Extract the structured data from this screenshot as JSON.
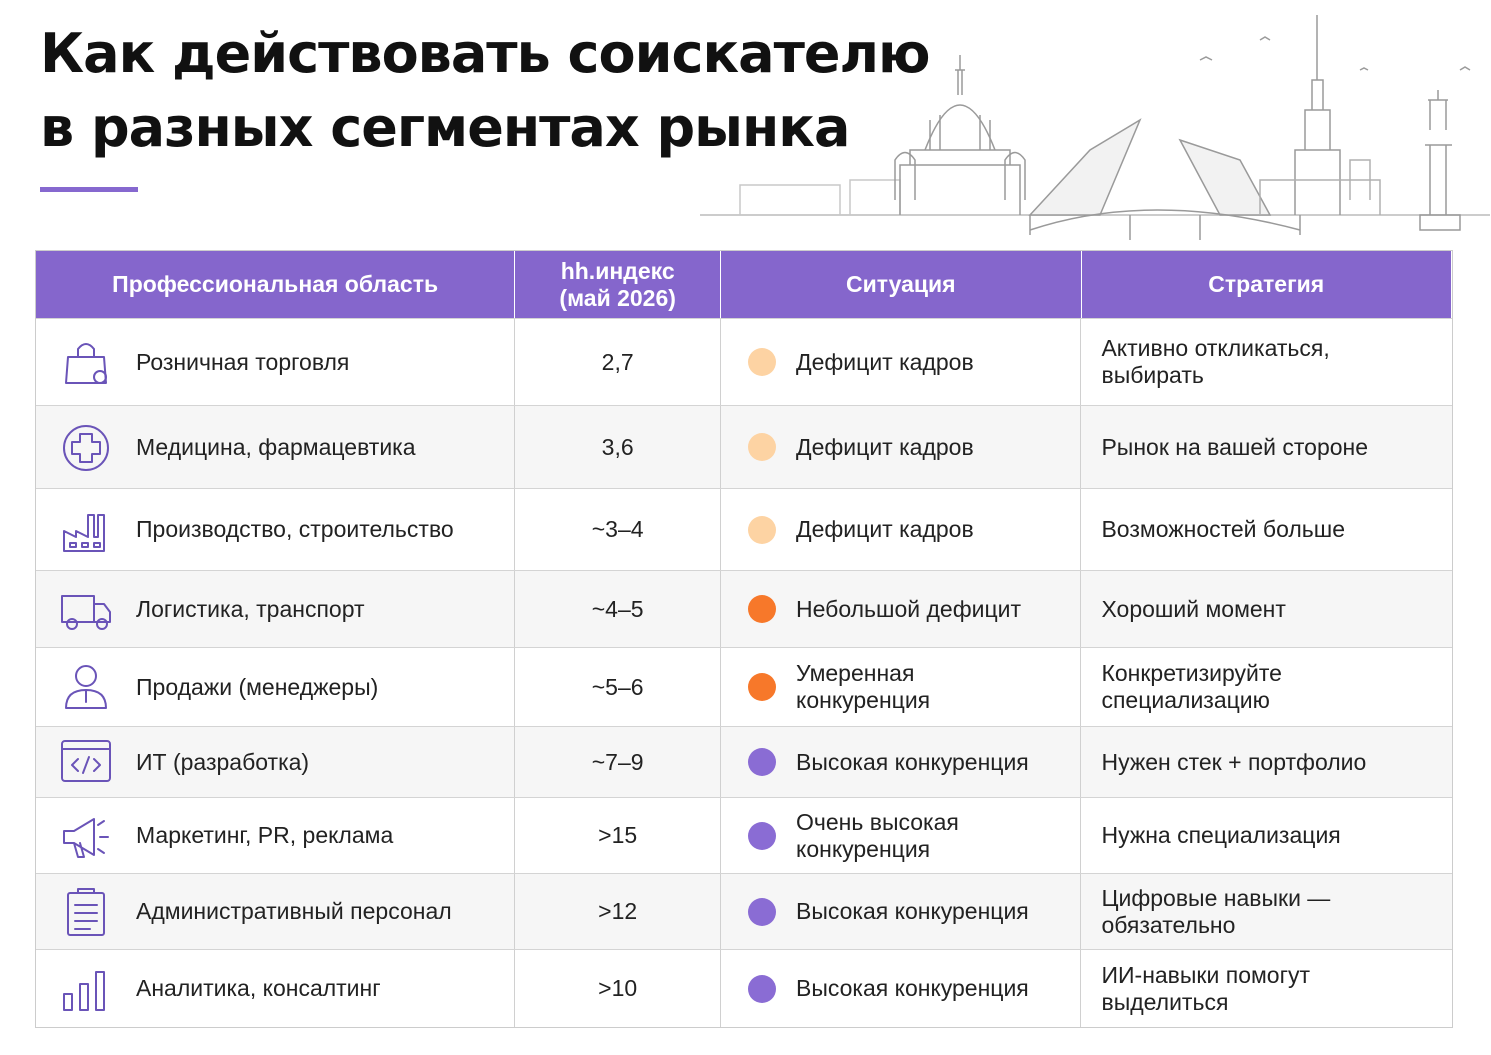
{
  "header": {
    "title": [
      "Как действовать соискателю",
      "в разных сегментах рынка"
    ]
  },
  "table": {
    "columns": [
      "Профессиональная область",
      "hh.индекс (май 2026)",
      "Ситуация",
      "Стратегия"
    ],
    "rows": [
      {
        "area": "Розничная торговля",
        "index": "2,7",
        "situation": "Дефицит кадров",
        "strategy": "Активно откликаться, выбирать",
        "dot_color": "#fdd3a3"
      },
      {
        "area": "Медицина, фармацевтика",
        "index": "3,6",
        "situation": "Дефицит кадров",
        "strategy": "Рынок на вашей стороне",
        "dot_color": "#fdd3a3"
      },
      {
        "area": "Производство, строительство",
        "index": "~3–4",
        "situation": "Дефицит кадров",
        "strategy": "Возможностей больше",
        "dot_color": "#fdd3a3"
      },
      {
        "area": "Логистика, транспорт",
        "index": "~4–5",
        "situation": "Небольшой дефицит",
        "strategy": "Хороший момент",
        "dot_color": "#f7782a"
      },
      {
        "area": "Продажи (менеджеры)",
        "index": "~5–6",
        "situation": "Умеренная конкуренция",
        "strategy": "Конкретизируйте специализацию",
        "dot_color": "#f7782a"
      },
      {
        "area": "ИТ (разработка)",
        "index": "~7–9",
        "situation": "Высокая конкуренция",
        "strategy": "Нужен стек + портфолио",
        "dot_color": "#8a6cd4"
      },
      {
        "area": "Маркетинг, PR, реклама",
        "index": ">15",
        "situation": "Очень высокая конкуренция",
        "strategy": "Нужна специализация",
        "dot_color": "#8a6cd4"
      },
      {
        "area": "Административный персонал",
        "index": ">12",
        "situation": "Высокая конкуренция",
        "strategy": "Цифровые навыки — обязательно",
        "dot_color": "#8a6cd4"
      },
      {
        "area": "Аналитика, консалтинг",
        "index": ">10",
        "situation": "Высокая конкуренция",
        "strategy": "ИИ-навыки помогут выделиться",
        "dot_color": "#8a6cd4"
      }
    ]
  }
}
